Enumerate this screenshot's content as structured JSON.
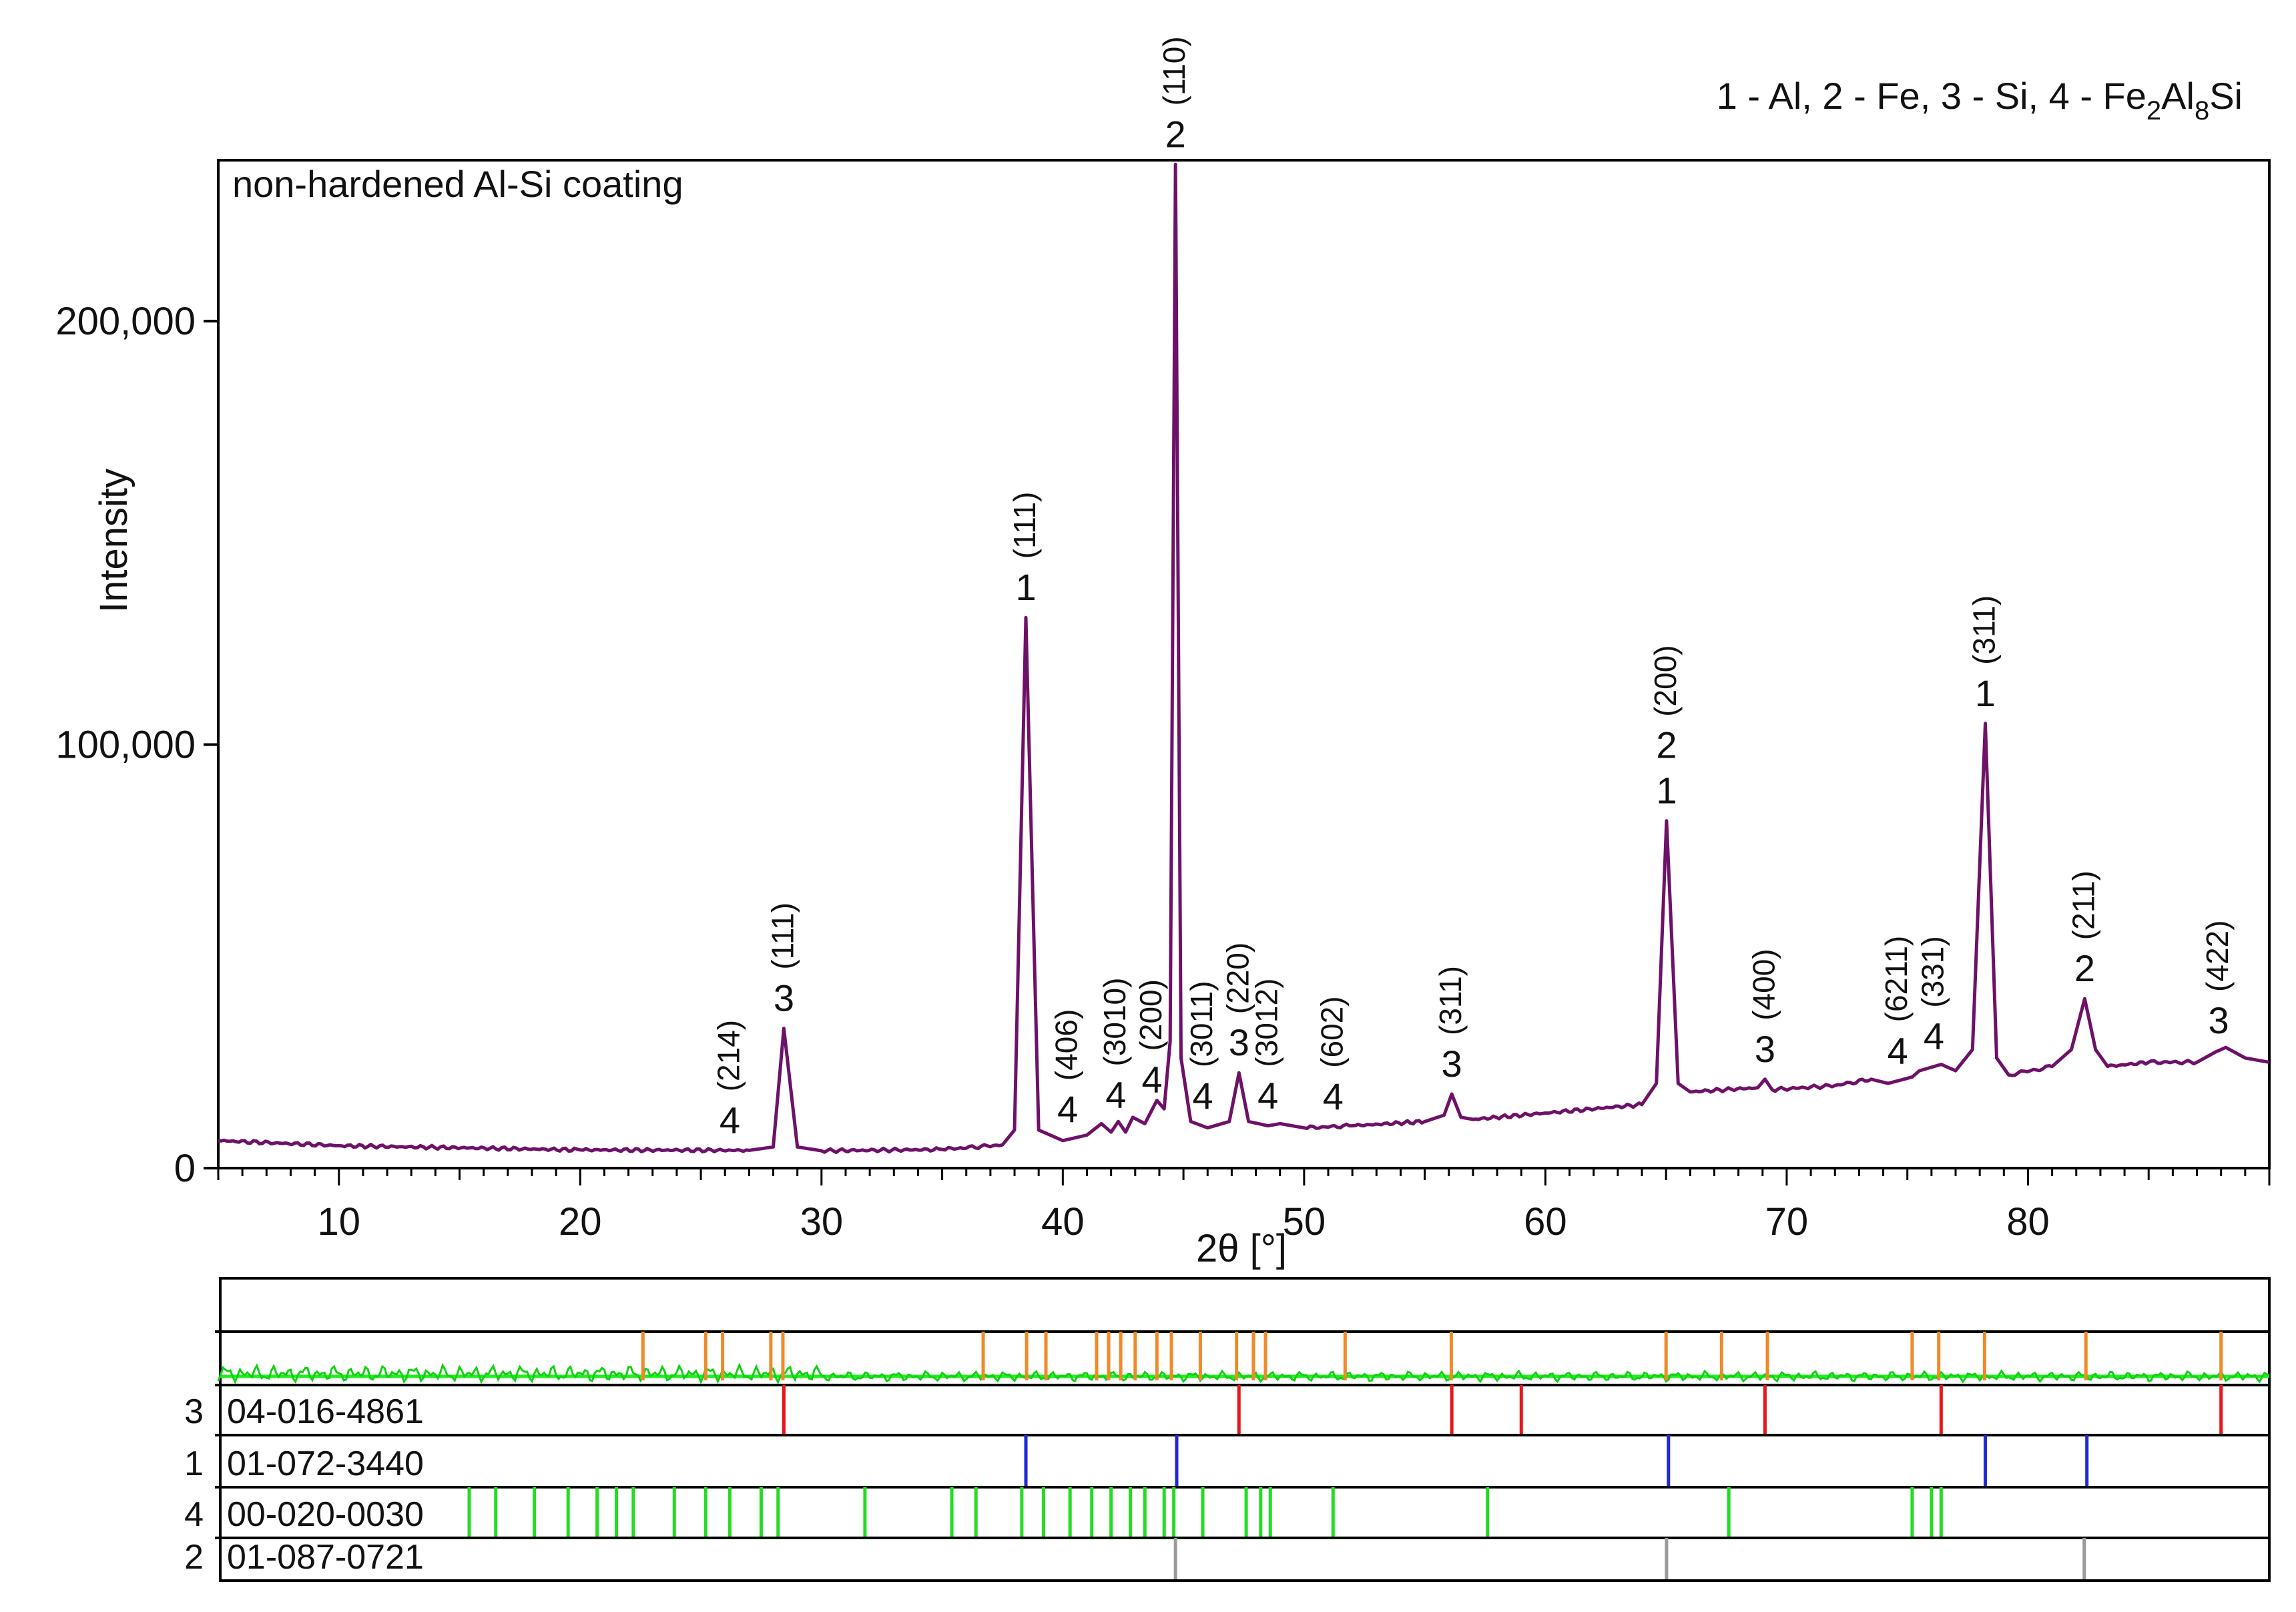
{
  "legend_title": "1 - Al, 2 - Fe, 3 - Si, 4 - Fe",
  "legend_sub_a": "2",
  "legend_mid": "Al",
  "legend_sub_b": "8",
  "legend_end": "Si",
  "chart_data": {
    "type": "line",
    "title": "non-hardened Al-Si coating",
    "xlabel": "2θ [°]",
    "ylabel": "Intensity",
    "xlim": [
      5,
      90
    ],
    "ylim": [
      0,
      238000
    ],
    "xticks": [
      10,
      20,
      30,
      40,
      50,
      60,
      70,
      80
    ],
    "yticks": [
      0,
      100000,
      200000
    ],
    "ytick_labels": [
      "0",
      "100,000",
      "200,000"
    ],
    "series": [
      {
        "name": "non-hardened Al-Si coating",
        "color": "#6e1168",
        "x": [
          5,
          10,
          20,
          27,
          28.0,
          28.44,
          29.0,
          30,
          35,
          37.5,
          38.0,
          38.47,
          39.0,
          40,
          41.0,
          41.6,
          42.0,
          42.3,
          42.6,
          42.9,
          43.4,
          43.9,
          44.2,
          44.45,
          44.67,
          44.9,
          45.3,
          46,
          46.9,
          47.3,
          47.7,
          48.5,
          49.0,
          50,
          52,
          55,
          55.8,
          56.12,
          56.5,
          57,
          60,
          64,
          64.6,
          65.02,
          65.5,
          66,
          68.8,
          69.1,
          69.4,
          72,
          73.5,
          74.2,
          75.2,
          75.5,
          76.4,
          77.0,
          77.7,
          78.23,
          78.7,
          79.2,
          81.0,
          81.8,
          82.35,
          82.8,
          83.3,
          85,
          87,
          87.8,
          88.2,
          89,
          90
        ],
        "y": [
          6500,
          5300,
          4300,
          4200,
          5000,
          33000,
          5000,
          4100,
          4400,
          5500,
          9000,
          130000,
          9000,
          6500,
          7800,
          10500,
          8500,
          11000,
          8500,
          12000,
          10500,
          16000,
          14000,
          30000,
          237000,
          26000,
          11000,
          9500,
          11000,
          22500,
          11000,
          10000,
          10500,
          9500,
          10000,
          11000,
          12500,
          17500,
          12000,
          11500,
          13000,
          15000,
          20000,
          82000,
          20000,
          18000,
          19000,
          21000,
          18500,
          19500,
          21000,
          20000,
          21500,
          23000,
          24500,
          23000,
          28000,
          105000,
          26000,
          22000,
          24000,
          28000,
          40000,
          28000,
          24000,
          25000,
          25000,
          27500,
          28500,
          26000,
          25000
        ]
      }
    ],
    "peak_labels": [
      {
        "x": 26.2,
        "phase": "4",
        "hkl": "(214)"
      },
      {
        "x": 28.44,
        "phase": "3",
        "hkl": "(111)"
      },
      {
        "x": 38.47,
        "phase": "1",
        "hkl": "(111)"
      },
      {
        "x": 40.2,
        "phase": "4",
        "hkl": "(406)"
      },
      {
        "x": 42.2,
        "phase": "4",
        "hkl": "(3010)"
      },
      {
        "x": 43.7,
        "phase": "4",
        "hkl": "(200)"
      },
      {
        "x": 44.67,
        "phase": "2",
        "hkl": "(110)"
      },
      {
        "x": 45.8,
        "phase": "4",
        "hkl": "(3011)"
      },
      {
        "x": 47.3,
        "phase": "3",
        "hkl": "(220)"
      },
      {
        "x": 48.5,
        "phase": "4",
        "hkl": "(3012)"
      },
      {
        "x": 51.2,
        "phase": "4",
        "hkl": "(602)"
      },
      {
        "x": 56.12,
        "phase": "3",
        "hkl": "(311)"
      },
      {
        "x": 65.02,
        "phase": "2 / 1",
        "hkl": "(200)"
      },
      {
        "x": 69.1,
        "phase": "3",
        "hkl": "(400)"
      },
      {
        "x": 74.6,
        "phase": "4",
        "hkl": "(6211)"
      },
      {
        "x": 76.1,
        "phase": "4",
        "hkl": "(331)"
      },
      {
        "x": 78.23,
        "phase": "1",
        "hkl": "(311)"
      },
      {
        "x": 82.35,
        "phase": "2",
        "hkl": "(211)"
      },
      {
        "x": 87.9,
        "phase": "3",
        "hkl": "(422)"
      }
    ],
    "reference_patterns": [
      {
        "phase": "3",
        "code": "04-016-4861",
        "color": "#e8151a",
        "positions": [
          28.44,
          47.3,
          56.12,
          59.0,
          69.1,
          76.4,
          88.0
        ]
      },
      {
        "phase": "1",
        "code": "01-072-3440",
        "color": "#1d2ad6",
        "positions": [
          38.47,
          44.72,
          65.1,
          78.23,
          82.44
        ]
      },
      {
        "phase": "4",
        "code": "00-020-0030",
        "color": "#22dd22",
        "positions": [
          15.4,
          16.5,
          18.1,
          19.5,
          20.7,
          21.5,
          22.2,
          23.9,
          25.2,
          26.2,
          27.5,
          28.2,
          31.8,
          35.4,
          36.4,
          38.3,
          39.2,
          40.3,
          41.2,
          42.0,
          42.8,
          43.4,
          44.2,
          44.6,
          45.8,
          47.6,
          48.2,
          48.6,
          51.2,
          57.6,
          67.6,
          75.2,
          76.0,
          76.4
        ]
      },
      {
        "phase": "2",
        "code": "01-087-0721",
        "color": "#9a9a9a",
        "positions": [
          44.67,
          65.02,
          82.33
        ]
      }
    ],
    "difference_markers": {
      "color": "#f08a28",
      "positions": [
        22.6,
        25.2,
        25.9,
        27.9,
        28.4,
        36.7,
        38.5,
        39.3,
        41.4,
        41.9,
        42.4,
        43.0,
        43.9,
        44.5,
        45.7,
        47.2,
        47.9,
        48.4,
        51.7,
        56.1,
        65.0,
        67.3,
        69.2,
        75.2,
        76.3,
        78.2,
        82.4,
        88.0
      ]
    }
  }
}
